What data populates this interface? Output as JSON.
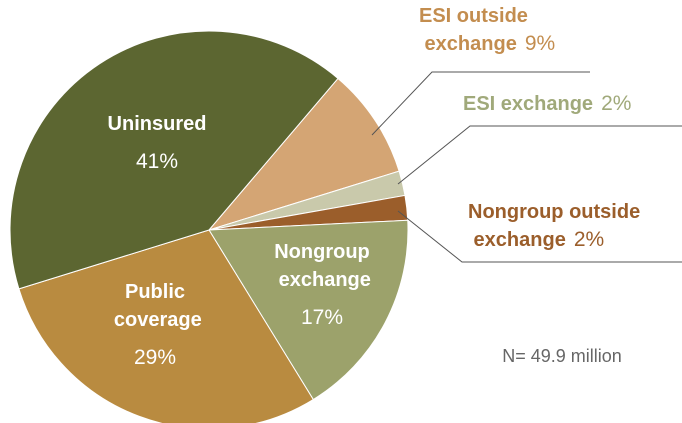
{
  "chart_data": {
    "type": "pie",
    "categories": [
      "ESI outside exchange",
      "ESI exchange",
      "Nongroup outside exchange",
      "Nongroup exchange",
      "Public coverage",
      "Uninsured"
    ],
    "values": [
      9,
      2,
      2,
      17,
      29,
      41
    ],
    "value_labels": [
      "9%",
      "2%",
      "2%",
      "17%",
      "29%",
      "41%"
    ],
    "colors": [
      "#d4a574",
      "#c9c9ab",
      "#9b5e2b",
      "#9ca26b",
      "#b98b40",
      "#5c6631"
    ],
    "note": "N= 49.9 million"
  }
}
